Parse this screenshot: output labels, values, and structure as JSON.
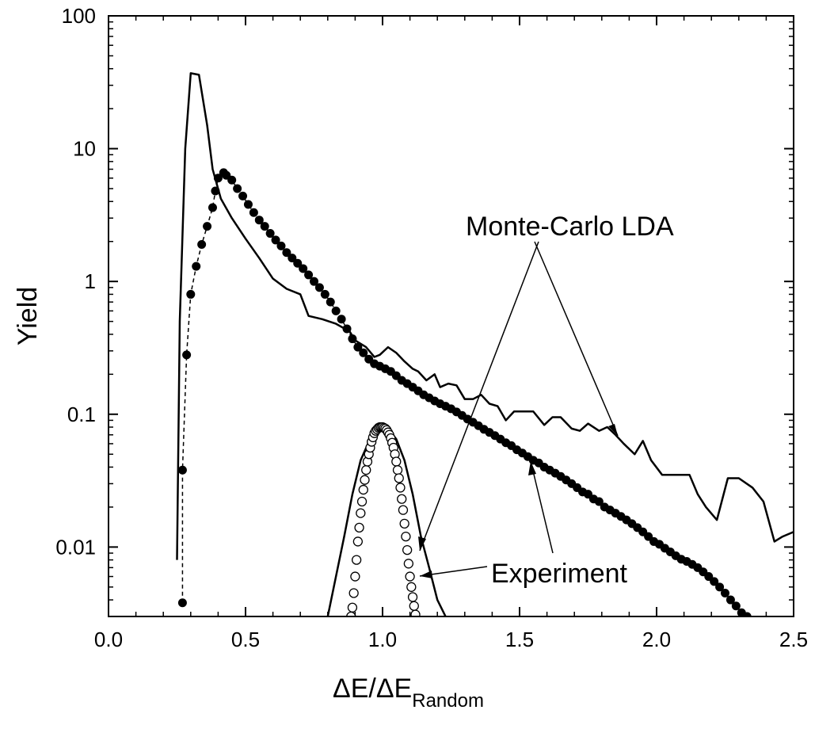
{
  "chart_data": {
    "type": "line",
    "title": "",
    "xlabel_main": "ΔE/ΔE",
    "xlabel_sub": "Random",
    "ylabel": "Yield",
    "xlim": [
      0.0,
      2.5
    ],
    "ylim": [
      0.003,
      100
    ],
    "yscale": "log",
    "grid": false,
    "legend": "none",
    "x_ticks": [
      {
        "value": 0.0,
        "label": "0.0"
      },
      {
        "value": 0.5,
        "label": "0.5"
      },
      {
        "value": 1.0,
        "label": "1.0"
      },
      {
        "value": 1.5,
        "label": "1.5"
      },
      {
        "value": 2.0,
        "label": "2.0"
      },
      {
        "value": 2.5,
        "label": "2.5"
      }
    ],
    "y_ticks": [
      {
        "value": 0.01,
        "label": "0.01"
      },
      {
        "value": 0.1,
        "label": "0.1"
      },
      {
        "value": 1,
        "label": "1"
      },
      {
        "value": 10,
        "label": "10"
      },
      {
        "value": 100,
        "label": "100"
      }
    ],
    "annotations": [
      {
        "id": "mc",
        "text": "Monte-Carlo LDA"
      },
      {
        "id": "exp",
        "text": "Experiment"
      }
    ],
    "series": [
      {
        "style": "line",
        "color": "#000000",
        "points": [
          [
            0.25,
            0.008
          ],
          [
            0.26,
            0.5
          ],
          [
            0.28,
            10
          ],
          [
            0.3,
            37
          ],
          [
            0.33,
            36
          ],
          [
            0.36,
            15
          ],
          [
            0.38,
            7
          ],
          [
            0.41,
            4.2
          ],
          [
            0.45,
            3.0
          ],
          [
            0.5,
            2.1
          ],
          [
            0.55,
            1.5
          ],
          [
            0.6,
            1.05
          ],
          [
            0.65,
            0.88
          ],
          [
            0.7,
            0.8
          ],
          [
            0.73,
            0.55
          ],
          [
            0.78,
            0.52
          ],
          [
            0.83,
            0.48
          ],
          [
            0.88,
            0.42
          ],
          [
            0.9,
            0.36
          ],
          [
            0.94,
            0.32
          ],
          [
            0.97,
            0.27
          ],
          [
            0.99,
            0.28
          ],
          [
            1.02,
            0.32
          ],
          [
            1.05,
            0.29
          ],
          [
            1.08,
            0.25
          ],
          [
            1.11,
            0.22
          ],
          [
            1.13,
            0.21
          ],
          [
            1.16,
            0.18
          ],
          [
            1.19,
            0.2
          ],
          [
            1.21,
            0.16
          ],
          [
            1.24,
            0.17
          ],
          [
            1.27,
            0.165
          ],
          [
            1.3,
            0.13
          ],
          [
            1.33,
            0.13
          ],
          [
            1.36,
            0.14
          ],
          [
            1.39,
            0.12
          ],
          [
            1.42,
            0.115
          ],
          [
            1.45,
            0.09
          ],
          [
            1.48,
            0.105
          ],
          [
            1.52,
            0.105
          ],
          [
            1.55,
            0.105
          ],
          [
            1.59,
            0.083
          ],
          [
            1.62,
            0.095
          ],
          [
            1.65,
            0.095
          ],
          [
            1.69,
            0.078
          ],
          [
            1.72,
            0.075
          ],
          [
            1.75,
            0.085
          ],
          [
            1.79,
            0.075
          ],
          [
            1.82,
            0.08
          ],
          [
            1.85,
            0.07
          ],
          [
            1.88,
            0.06
          ],
          [
            1.92,
            0.05
          ],
          [
            1.95,
            0.063
          ],
          [
            1.98,
            0.045
          ],
          [
            2.02,
            0.035
          ],
          [
            2.07,
            0.035
          ],
          [
            2.12,
            0.035
          ],
          [
            2.15,
            0.025
          ],
          [
            2.18,
            0.02
          ],
          [
            2.22,
            0.016
          ],
          [
            2.26,
            0.033
          ],
          [
            2.3,
            0.033
          ],
          [
            2.35,
            0.028
          ],
          [
            2.39,
            0.022
          ],
          [
            2.43,
            0.011
          ],
          [
            2.46,
            0.012
          ],
          [
            2.5,
            0.013
          ]
        ]
      },
      {
        "style": "line",
        "color": "#000000",
        "points": [
          [
            0.8,
            0.003
          ],
          [
            0.83,
            0.006
          ],
          [
            0.86,
            0.012
          ],
          [
            0.89,
            0.025
          ],
          [
            0.92,
            0.045
          ],
          [
            0.95,
            0.062
          ],
          [
            0.98,
            0.075
          ],
          [
            1.0,
            0.08
          ],
          [
            1.02,
            0.078
          ],
          [
            1.05,
            0.065
          ],
          [
            1.08,
            0.045
          ],
          [
            1.11,
            0.025
          ],
          [
            1.14,
            0.012
          ],
          [
            1.17,
            0.007
          ],
          [
            1.2,
            0.004
          ],
          [
            1.23,
            0.003
          ]
        ]
      },
      {
        "style": "filled-circle-dashed",
        "color": "#000000",
        "points": [
          [
            0.27,
            0.0038
          ],
          [
            0.27,
            0.038
          ],
          [
            0.285,
            0.28
          ],
          [
            0.3,
            0.8
          ],
          [
            0.32,
            1.3
          ],
          [
            0.34,
            1.9
          ],
          [
            0.36,
            2.6
          ],
          [
            0.38,
            3.6
          ],
          [
            0.39,
            4.8
          ],
          [
            0.4,
            6.0
          ],
          [
            0.42,
            6.6
          ],
          [
            0.43,
            6.3
          ],
          [
            0.45,
            5.8
          ],
          [
            0.47,
            5.0
          ],
          [
            0.49,
            4.4
          ],
          [
            0.51,
            3.8
          ],
          [
            0.53,
            3.3
          ],
          [
            0.55,
            2.9
          ],
          [
            0.57,
            2.6
          ],
          [
            0.59,
            2.3
          ],
          [
            0.61,
            2.05
          ],
          [
            0.63,
            1.85
          ],
          [
            0.65,
            1.65
          ],
          [
            0.67,
            1.5
          ],
          [
            0.69,
            1.37
          ],
          [
            0.71,
            1.25
          ],
          [
            0.73,
            1.12
          ],
          [
            0.75,
            1.0
          ],
          [
            0.77,
            0.9
          ],
          [
            0.79,
            0.8
          ],
          [
            0.81,
            0.7
          ],
          [
            0.83,
            0.6
          ],
          [
            0.85,
            0.52
          ],
          [
            0.87,
            0.44
          ],
          [
            0.89,
            0.37
          ],
          [
            0.91,
            0.32
          ],
          [
            0.93,
            0.29
          ],
          [
            0.95,
            0.26
          ],
          [
            0.97,
            0.24
          ],
          [
            0.99,
            0.23
          ],
          [
            1.01,
            0.22
          ],
          [
            1.03,
            0.21
          ],
          [
            1.05,
            0.195
          ],
          [
            1.07,
            0.18
          ],
          [
            1.09,
            0.17
          ],
          [
            1.11,
            0.16
          ],
          [
            1.13,
            0.15
          ],
          [
            1.15,
            0.14
          ],
          [
            1.17,
            0.133
          ],
          [
            1.19,
            0.126
          ],
          [
            1.21,
            0.12
          ],
          [
            1.23,
            0.115
          ],
          [
            1.25,
            0.11
          ],
          [
            1.27,
            0.104
          ],
          [
            1.29,
            0.098
          ],
          [
            1.31,
            0.092
          ],
          [
            1.33,
            0.087
          ],
          [
            1.35,
            0.082
          ],
          [
            1.37,
            0.077
          ],
          [
            1.39,
            0.073
          ],
          [
            1.41,
            0.069
          ],
          [
            1.43,
            0.065
          ],
          [
            1.45,
            0.061
          ],
          [
            1.47,
            0.058
          ],
          [
            1.49,
            0.054
          ],
          [
            1.51,
            0.051
          ],
          [
            1.53,
            0.048
          ],
          [
            1.55,
            0.045
          ],
          [
            1.57,
            0.043
          ],
          [
            1.59,
            0.04
          ],
          [
            1.61,
            0.038
          ],
          [
            1.63,
            0.036
          ],
          [
            1.65,
            0.034
          ],
          [
            1.67,
            0.032
          ],
          [
            1.69,
            0.03
          ],
          [
            1.71,
            0.028
          ],
          [
            1.73,
            0.026
          ],
          [
            1.75,
            0.025
          ],
          [
            1.77,
            0.023
          ],
          [
            1.79,
            0.022
          ],
          [
            1.81,
            0.02
          ],
          [
            1.83,
            0.019
          ],
          [
            1.85,
            0.018
          ],
          [
            1.87,
            0.017
          ],
          [
            1.89,
            0.016
          ],
          [
            1.91,
            0.015
          ],
          [
            1.93,
            0.014
          ],
          [
            1.95,
            0.013
          ],
          [
            1.97,
            0.012
          ],
          [
            1.99,
            0.011
          ],
          [
            2.01,
            0.0105
          ],
          [
            2.03,
            0.0098
          ],
          [
            2.05,
            0.0092
          ],
          [
            2.07,
            0.0086
          ],
          [
            2.09,
            0.0081
          ],
          [
            2.11,
            0.0078
          ],
          [
            2.13,
            0.0074
          ],
          [
            2.15,
            0.007
          ],
          [
            2.17,
            0.0065
          ],
          [
            2.19,
            0.006
          ],
          [
            2.21,
            0.0055
          ],
          [
            2.23,
            0.005
          ],
          [
            2.25,
            0.0045
          ],
          [
            2.27,
            0.004
          ],
          [
            2.29,
            0.0036
          ],
          [
            2.31,
            0.0032
          ],
          [
            2.33,
            0.003
          ]
        ]
      },
      {
        "style": "open-circle",
        "color": "#000000",
        "points": [
          [
            0.885,
            0.003
          ],
          [
            0.89,
            0.0035
          ],
          [
            0.895,
            0.0045
          ],
          [
            0.9,
            0.006
          ],
          [
            0.905,
            0.008
          ],
          [
            0.91,
            0.011
          ],
          [
            0.915,
            0.014
          ],
          [
            0.92,
            0.018
          ],
          [
            0.925,
            0.022
          ],
          [
            0.93,
            0.027
          ],
          [
            0.935,
            0.032
          ],
          [
            0.94,
            0.038
          ],
          [
            0.945,
            0.044
          ],
          [
            0.95,
            0.05
          ],
          [
            0.955,
            0.056
          ],
          [
            0.96,
            0.062
          ],
          [
            0.965,
            0.067
          ],
          [
            0.97,
            0.072
          ],
          [
            0.975,
            0.075
          ],
          [
            0.98,
            0.077
          ],
          [
            0.985,
            0.079
          ],
          [
            0.99,
            0.08
          ],
          [
            0.995,
            0.08
          ],
          [
            1.0,
            0.08
          ],
          [
            1.005,
            0.079
          ],
          [
            1.01,
            0.078
          ],
          [
            1.015,
            0.076
          ],
          [
            1.02,
            0.073
          ],
          [
            1.025,
            0.07
          ],
          [
            1.03,
            0.066
          ],
          [
            1.035,
            0.061
          ],
          [
            1.04,
            0.056
          ],
          [
            1.045,
            0.05
          ],
          [
            1.05,
            0.044
          ],
          [
            1.055,
            0.038
          ],
          [
            1.06,
            0.033
          ],
          [
            1.065,
            0.028
          ],
          [
            1.07,
            0.023
          ],
          [
            1.075,
            0.019
          ],
          [
            1.08,
            0.015
          ],
          [
            1.085,
            0.012
          ],
          [
            1.09,
            0.0095
          ],
          [
            1.095,
            0.0075
          ],
          [
            1.1,
            0.006
          ],
          [
            1.105,
            0.005
          ],
          [
            1.11,
            0.0042
          ],
          [
            1.115,
            0.0036
          ],
          [
            1.12,
            0.0031
          ]
        ]
      }
    ]
  }
}
